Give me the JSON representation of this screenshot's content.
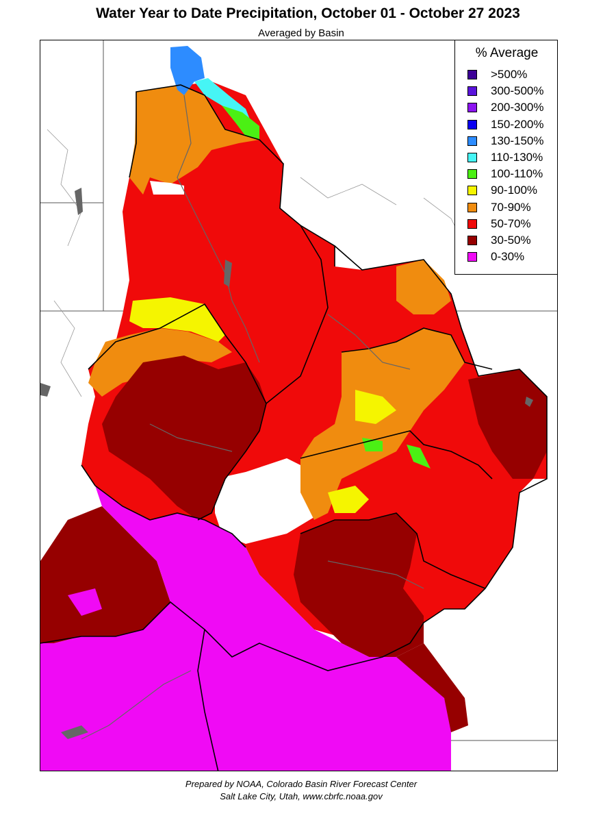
{
  "title": "Water Year to Date Precipitation, October 01  - October 27 2023",
  "subtitle": "Averaged by Basin",
  "legend": {
    "title": "% Average",
    "items": [
      {
        "label": ">500%",
        "color": "#3c0096"
      },
      {
        "label": "300-500%",
        "color": "#5a14dc"
      },
      {
        "label": "200-300%",
        "color": "#8c14f0"
      },
      {
        "label": "150-200%",
        "color": "#0a00f0"
      },
      {
        "label": "130-150%",
        "color": "#2d8cff"
      },
      {
        "label": "110-130%",
        "color": "#46f5f5"
      },
      {
        "label": "100-110%",
        "color": "#4bf014"
      },
      {
        "label": "90-100%",
        "color": "#f5f500"
      },
      {
        "label": "70-90%",
        "color": "#f08c0f"
      },
      {
        "label": "50-70%",
        "color": "#f00a0a"
      },
      {
        "label": "30-50%",
        "color": "#960000"
      },
      {
        "label": "0-30%",
        "color": "#f00af5"
      }
    ]
  },
  "footer": {
    "line1": "Prepared by NOAA, Colorado Basin River Forecast Center",
    "line2": "Salt Lake City, Utah, www.cbrfc.noaa.gov"
  }
}
